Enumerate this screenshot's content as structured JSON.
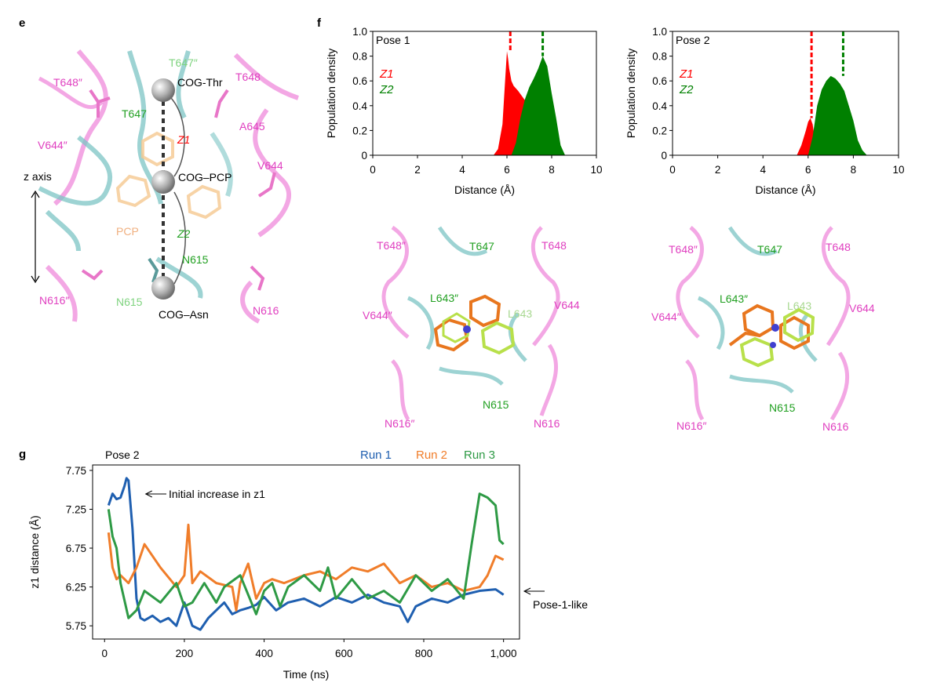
{
  "panels": {
    "e": "e",
    "f": "f",
    "g": "g"
  },
  "structure_e": {
    "cog_labels": [
      "COG-Thr",
      "COG–PCP",
      "COG–Asn"
    ],
    "z_axis_label": "z axis",
    "distance_labels": [
      "Z1",
      "Z2"
    ],
    "residues": [
      {
        "text": "T647″",
        "color": "#7fd37f"
      },
      {
        "text": "T648″",
        "color": "#e040c0"
      },
      {
        "text": "T648",
        "color": "#e040c0"
      },
      {
        "text": "T647",
        "color": "#22a022"
      },
      {
        "text": "A645",
        "color": "#e040c0"
      },
      {
        "text": "V644″",
        "color": "#e040c0"
      },
      {
        "text": "V644",
        "color": "#e040c0"
      },
      {
        "text": "PCP",
        "color": "#f0b080"
      },
      {
        "text": "N615",
        "color": "#22a022"
      },
      {
        "text": "N616″",
        "color": "#e040c0"
      },
      {
        "text": "N615",
        "color": "#7fd37f"
      },
      {
        "text": "N616",
        "color": "#e040c0"
      }
    ]
  },
  "views_f": [
    {
      "labels": [
        {
          "text": "T648″",
          "color": "#e040c0"
        },
        {
          "text": "T647",
          "color": "#22a022"
        },
        {
          "text": "T648",
          "color": "#e040c0"
        },
        {
          "text": "L643″",
          "color": "#22a022"
        },
        {
          "text": "V644″",
          "color": "#e040c0"
        },
        {
          "text": "L643",
          "color": "#a8d890"
        },
        {
          "text": "V644",
          "color": "#e040c0"
        },
        {
          "text": "N615",
          "color": "#22a022"
        },
        {
          "text": "N616″",
          "color": "#e040c0"
        },
        {
          "text": "N616",
          "color": "#e040c0"
        }
      ]
    },
    {
      "labels": [
        {
          "text": "T648″",
          "color": "#e040c0"
        },
        {
          "text": "T647",
          "color": "#22a022"
        },
        {
          "text": "T648",
          "color": "#e040c0"
        },
        {
          "text": "L643″",
          "color": "#22a022"
        },
        {
          "text": "L643",
          "color": "#a8d890"
        },
        {
          "text": "V644″",
          "color": "#e040c0"
        },
        {
          "text": "V644",
          "color": "#e040c0"
        },
        {
          "text": "N615",
          "color": "#22a022"
        },
        {
          "text": "N616″",
          "color": "#e040c0"
        },
        {
          "text": "N616",
          "color": "#e040c0"
        }
      ]
    }
  ],
  "chart_data": [
    {
      "type": "area",
      "panel": "f",
      "title": "Pose 1",
      "xlabel": "Distance (Å)",
      "ylabel": "Population density",
      "xlim": [
        0,
        10
      ],
      "ylim": [
        0,
        1.0
      ],
      "xticks": [
        0,
        2,
        4,
        6,
        8,
        10
      ],
      "yticks": [
        0,
        0.2,
        0.4,
        0.6,
        0.8,
        1.0
      ],
      "ytick_labels": [
        "0",
        "0.2",
        "0.4",
        "0.6",
        "0.8",
        "1.0"
      ],
      "series": [
        {
          "name": "Z1",
          "color": "#ff0000",
          "x": [
            5.4,
            5.6,
            5.8,
            5.9,
            6.0,
            6.05,
            6.1,
            6.2,
            6.3,
            6.5,
            6.7,
            6.9,
            7.0,
            7.1
          ],
          "y": [
            0.0,
            0.05,
            0.25,
            0.55,
            0.84,
            0.78,
            0.7,
            0.6,
            0.56,
            0.52,
            0.47,
            0.42,
            0.2,
            0.0
          ],
          "mean": 6.15
        },
        {
          "name": "Z2",
          "color": "#008000",
          "x": [
            6.2,
            6.4,
            6.6,
            6.8,
            7.0,
            7.2,
            7.4,
            7.6,
            7.8,
            8.0,
            8.2,
            8.4,
            8.6
          ],
          "y": [
            0.0,
            0.1,
            0.3,
            0.45,
            0.55,
            0.62,
            0.7,
            0.8,
            0.72,
            0.5,
            0.3,
            0.08,
            0.0
          ],
          "mean": 7.6
        }
      ]
    },
    {
      "type": "area",
      "panel": "f",
      "title": "Pose 2",
      "xlabel": "Distance (Å)",
      "ylabel": "Population density",
      "xlim": [
        0,
        10
      ],
      "ylim": [
        0,
        1.0
      ],
      "xticks": [
        0,
        2,
        4,
        6,
        8,
        10
      ],
      "yticks": [
        0,
        0.2,
        0.4,
        0.6,
        0.8,
        1.0
      ],
      "ytick_labels": [
        "0",
        "0.2",
        "0.4",
        "0.6",
        "0.8",
        "1.0"
      ],
      "series": [
        {
          "name": "Z1",
          "color": "#ff0000",
          "x": [
            5.5,
            5.7,
            5.9,
            6.0,
            6.1,
            6.2,
            6.3,
            6.4
          ],
          "y": [
            0.0,
            0.08,
            0.2,
            0.27,
            0.3,
            0.25,
            0.12,
            0.0
          ],
          "mean": 6.15
        },
        {
          "name": "Z2",
          "color": "#008000",
          "x": [
            6.0,
            6.2,
            6.4,
            6.6,
            6.8,
            7.0,
            7.2,
            7.4,
            7.6,
            7.8,
            8.0,
            8.2,
            8.4,
            8.6
          ],
          "y": [
            0.0,
            0.15,
            0.4,
            0.53,
            0.6,
            0.64,
            0.62,
            0.58,
            0.52,
            0.4,
            0.28,
            0.12,
            0.04,
            0.0
          ],
          "mean": 7.55
        }
      ]
    },
    {
      "type": "line",
      "panel": "g",
      "title": "Pose 2",
      "xlabel": "Time (ns)",
      "ylabel": "z1 distance (Å)",
      "xlim": [
        -30,
        1040
      ],
      "ylim": [
        5.58,
        7.82
      ],
      "xticks": [
        0,
        200,
        400,
        600,
        800,
        1000
      ],
      "xtick_labels": [
        "0",
        "200",
        "400",
        "600",
        "800",
        "1,000"
      ],
      "yticks": [
        5.75,
        6.25,
        6.75,
        7.25,
        7.75
      ],
      "ytick_labels": [
        "5.75",
        "6.25",
        "6.75",
        "7.25",
        "7.75"
      ],
      "annotations": [
        {
          "text": "Initial increase in z1",
          "x": 60,
          "y": 7.5
        },
        {
          "text": "Pose-1-like",
          "x": 1000,
          "y": 6.17
        }
      ],
      "series": [
        {
          "name": "Run 1",
          "color": "#1f5fb0",
          "x": [
            10,
            20,
            30,
            40,
            50,
            55,
            60,
            70,
            80,
            90,
            100,
            120,
            140,
            160,
            180,
            200,
            220,
            240,
            260,
            280,
            300,
            320,
            340,
            360,
            380,
            400,
            430,
            460,
            500,
            540,
            580,
            620,
            660,
            700,
            740,
            760,
            780,
            820,
            860,
            900,
            940,
            980,
            1000
          ],
          "y": [
            7.3,
            7.45,
            7.38,
            7.4,
            7.55,
            7.65,
            7.62,
            7.0,
            6.1,
            5.85,
            5.82,
            5.88,
            5.8,
            5.85,
            5.75,
            6.05,
            5.75,
            5.7,
            5.85,
            5.95,
            6.05,
            5.9,
            5.95,
            5.98,
            6.02,
            6.12,
            5.95,
            6.05,
            6.1,
            6.0,
            6.12,
            6.05,
            6.15,
            6.05,
            6.0,
            5.8,
            6.0,
            6.1,
            6.05,
            6.15,
            6.2,
            6.22,
            6.15
          ]
        },
        {
          "name": "Run 2",
          "color": "#f07d2a",
          "x": [
            10,
            20,
            30,
            40,
            60,
            80,
            100,
            140,
            180,
            200,
            210,
            220,
            240,
            280,
            320,
            330,
            340,
            360,
            380,
            400,
            420,
            450,
            500,
            540,
            580,
            620,
            660,
            700,
            740,
            780,
            820,
            860,
            900,
            940,
            960,
            980,
            1000
          ],
          "y": [
            6.95,
            6.5,
            6.35,
            6.4,
            6.3,
            6.5,
            6.8,
            6.5,
            6.25,
            6.4,
            7.05,
            6.3,
            6.45,
            6.3,
            6.25,
            5.95,
            6.3,
            6.55,
            6.1,
            6.3,
            6.35,
            6.3,
            6.4,
            6.45,
            6.35,
            6.5,
            6.45,
            6.55,
            6.3,
            6.4,
            6.25,
            6.3,
            6.2,
            6.25,
            6.4,
            6.65,
            6.6
          ]
        },
        {
          "name": "Run 3",
          "color": "#2e9a45",
          "x": [
            10,
            20,
            30,
            40,
            60,
            80,
            100,
            140,
            180,
            200,
            220,
            250,
            280,
            300,
            340,
            380,
            400,
            420,
            440,
            460,
            500,
            540,
            560,
            580,
            620,
            660,
            700,
            740,
            780,
            820,
            860,
            900,
            920,
            940,
            960,
            980,
            990,
            1000
          ],
          "y": [
            7.25,
            6.9,
            6.75,
            6.3,
            5.85,
            5.95,
            6.2,
            6.05,
            6.3,
            6.0,
            6.05,
            6.3,
            6.05,
            6.25,
            6.4,
            5.9,
            6.2,
            6.3,
            6.0,
            6.25,
            6.4,
            6.2,
            6.5,
            6.1,
            6.35,
            6.1,
            6.2,
            6.05,
            6.4,
            6.2,
            6.35,
            6.1,
            6.8,
            7.45,
            7.4,
            7.3,
            6.85,
            6.8
          ]
        }
      ]
    }
  ]
}
